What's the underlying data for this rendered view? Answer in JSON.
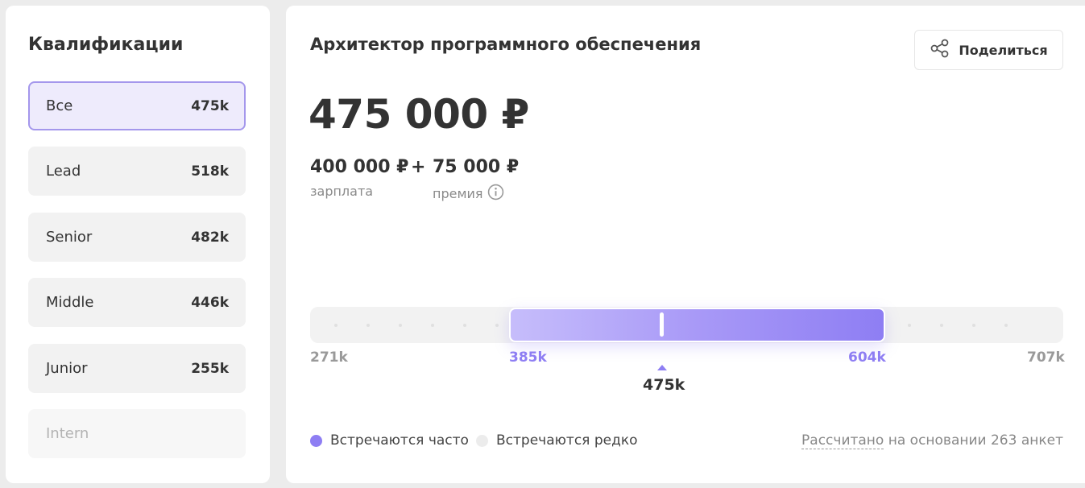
{
  "qualifications": {
    "title": "Квалификации",
    "items": [
      {
        "label": "Все",
        "value": "475k",
        "state": "active"
      },
      {
        "label": "Lead",
        "value": "518k",
        "state": "normal"
      },
      {
        "label": "Senior",
        "value": "482k",
        "state": "normal"
      },
      {
        "label": "Middle",
        "value": "446k",
        "state": "normal"
      },
      {
        "label": "Junior",
        "value": "255k",
        "state": "normal"
      },
      {
        "label": "Intern",
        "value": "",
        "state": "disabled"
      }
    ]
  },
  "main": {
    "title": "Архитектор программного обеспечения",
    "share_label": "Поделиться",
    "total": "475 000 ₽",
    "salary_value": "400 000 ₽",
    "salary_label": "зарплата",
    "plus": "+",
    "bonus_value": "75 000 ₽",
    "bonus_label": "премия"
  },
  "range": {
    "min": "271k",
    "low": "385k",
    "high": "604k",
    "max": "707k",
    "median": "475k",
    "accent_color": "#8e7ef3"
  },
  "legend": {
    "frequent": "Встречаются часто",
    "rare": "Встречаются редко",
    "note_link": "Рассчитано",
    "note_rest": " на основании 263 анкет"
  }
}
